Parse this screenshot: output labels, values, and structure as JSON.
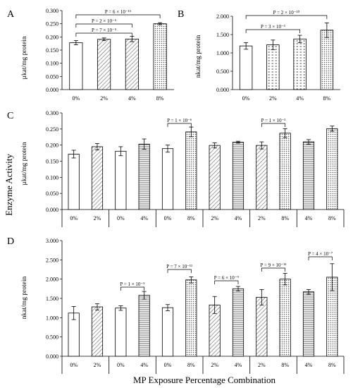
{
  "figure": {
    "ylabel": "Enzyme Activity",
    "xlabel": "MP Exposure Percentage Combination"
  },
  "chart_data": [
    {
      "panel": "A",
      "type": "bar",
      "ylabel": "µkat/mg protein",
      "ylim": [
        0,
        0.3
      ],
      "yticks": [
        "0.000",
        "0.050",
        "0.100",
        "0.150",
        "0.200",
        "0.250",
        "0.300"
      ],
      "categories": [
        "0%",
        "2%",
        "4%",
        "8%"
      ],
      "values": [
        0.178,
        0.191,
        0.192,
        0.25
      ],
      "errors": [
        0.008,
        0.005,
        0.01,
        0.004
      ],
      "patterns": [
        "white",
        "diagonal",
        "diagonal",
        "dots"
      ],
      "annotations": [
        {
          "label": "P = 7 × 10⁻⁵",
          "from": 0,
          "to": 2
        },
        {
          "label": "P = 2 × 10⁻⁵",
          "from": 0,
          "to": 2
        },
        {
          "label": "P = 6 × 10⁻¹⁵",
          "from": 0,
          "to": 3
        }
      ]
    },
    {
      "panel": "B",
      "type": "bar",
      "ylabel": "nkat/mg protein",
      "ylim": [
        0,
        2.0
      ],
      "yticks": [
        "0.000",
        "0.500",
        "1.000",
        "1.500",
        "2.000"
      ],
      "categories": [
        "0%",
        "2%",
        "4%",
        "8%"
      ],
      "values": [
        1.19,
        1.22,
        1.38,
        1.62
      ],
      "errors": [
        0.09,
        0.13,
        0.1,
        0.2
      ],
      "patterns": [
        "white",
        "horiz-dots",
        "horiz-dots",
        "dots"
      ],
      "annotations": [
        {
          "label": "P = 3 × 10⁻³",
          "from": 0,
          "to": 2
        },
        {
          "label": "P = 2 × 10⁻¹⁰",
          "from": 0,
          "to": 3
        }
      ]
    },
    {
      "panel": "C",
      "type": "bar",
      "ylabel": "µkat/mg protein",
      "ylim": [
        0,
        0.3
      ],
      "yticks": [
        "0.000",
        "0.050",
        "0.100",
        "0.150",
        "0.200",
        "0.250",
        "0.300"
      ],
      "categories": [
        "0%",
        "2%",
        "0%",
        "4%",
        "0%",
        "8%",
        "2%",
        "4%",
        "2%",
        "8%",
        "4%",
        "8%"
      ],
      "values": [
        0.172,
        0.195,
        0.181,
        0.203,
        0.189,
        0.241,
        0.199,
        0.209,
        0.199,
        0.237,
        0.21,
        0.251
      ],
      "errors": [
        0.012,
        0.01,
        0.014,
        0.016,
        0.011,
        0.015,
        0.008,
        0.003,
        0.011,
        0.014,
        0.007,
        0.008
      ],
      "patterns": [
        "white",
        "diagonal",
        "white",
        "horiz",
        "white",
        "dots",
        "diagonal",
        "horiz",
        "diagonal",
        "dots",
        "horiz",
        "dots"
      ],
      "annotations": [
        {
          "label": "P = 1 × 10⁻⁶",
          "from": 4,
          "to": 5
        },
        {
          "label": "P = 1 × 10⁻²",
          "from": 8,
          "to": 9
        }
      ]
    },
    {
      "panel": "D",
      "type": "bar",
      "ylabel": "nkat/mg protein",
      "ylim": [
        0,
        3.0
      ],
      "yticks": [
        "0.000",
        "0.500",
        "1.000",
        "1.500",
        "2.000",
        "2.500",
        "3.000"
      ],
      "categories": [
        "0%",
        "2%",
        "0%",
        "4%",
        "0%",
        "8%",
        "2%",
        "4%",
        "2%",
        "8%",
        "4%",
        "8%"
      ],
      "values": [
        1.12,
        1.28,
        1.25,
        1.58,
        1.26,
        1.98,
        1.33,
        1.75,
        1.53,
        2.0,
        1.67,
        2.05
      ],
      "errors": [
        0.17,
        0.08,
        0.06,
        0.1,
        0.08,
        0.08,
        0.22,
        0.06,
        0.2,
        0.15,
        0.06,
        0.35
      ],
      "patterns": [
        "white",
        "diagonal",
        "white",
        "horiz",
        "white",
        "dots",
        "diagonal",
        "horiz",
        "diagonal",
        "dots",
        "horiz",
        "dots"
      ],
      "annotations": [
        {
          "label": "P = 1 × 10⁻⁵",
          "from": 2,
          "to": 3
        },
        {
          "label": "P = 7 × 10⁻¹¹",
          "from": 4,
          "to": 5
        },
        {
          "label": "P = 6 × 10⁻⁹",
          "from": 6,
          "to": 7
        },
        {
          "label": "P = 9 × 10⁻¹¹",
          "from": 8,
          "to": 9
        },
        {
          "label": "P = 4 × 10⁻⁷",
          "from": 10,
          "to": 11
        }
      ]
    }
  ]
}
